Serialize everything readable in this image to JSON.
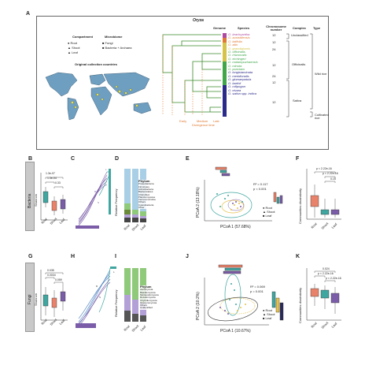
{
  "panel_A": {
    "letter": "A",
    "genus": "Oryza",
    "compartment_title": "Compartment",
    "compartments": [
      "Root",
      "Shoot",
      "Leaf"
    ],
    "microbiome_title": "Microbiome",
    "microbiomes": [
      "Fungi",
      "Bacteria + Archaea"
    ],
    "map_title": "Original collection countries",
    "headers": {
      "genome": "Genome",
      "species": "Species",
      "chromosome": "Chromosome number",
      "complex": "Complex",
      "type": "Type"
    },
    "species": [
      "O. brachyantha",
      "O. australiensis",
      "O. latifolia",
      "O. alta",
      "O. grandiglumis",
      "O. officinalis",
      "O. rhizomatis",
      "O. eichingeri",
      "O. malampuzhaensis",
      "O. minuta",
      "O. punctata",
      "O. longistaminata",
      "O. meridionalis",
      "O. glumaepatula",
      "O. barthii",
      "O. rufipogon",
      "O. nivara",
      "O. sativa spp. indica"
    ],
    "complexes": [
      "Unclassified",
      "Officinalis",
      "Sativa"
    ],
    "types": [
      "Wild rice",
      "Cultivated rice"
    ],
    "chromosome_numbers": [
      "12",
      "12",
      "24",
      "12",
      "24",
      "12",
      "12"
    ],
    "divergence_title": "Divergence time",
    "divergence_scale": [
      "Early",
      "Medium",
      "Late"
    ]
  },
  "row_labels": {
    "bacteria": "Bacteria",
    "fungi": "Fungi"
  },
  "panel_letters": {
    "B": "B",
    "C": "C",
    "D": "D",
    "E": "E",
    "F": "F",
    "G": "G",
    "H": "H",
    "I": "I",
    "J": "J",
    "K": "K"
  },
  "axes": {
    "shannon": "Shannon",
    "relative_frequency": "Relative Frequency",
    "pcoa1_bac": "PCoA 1 (57.68%)",
    "pcoa2_bac": "PCoA 2 (13.18%)",
    "pcoa1_fun": "PCoA 1 (10.67%)",
    "pcoa2_fun": "PCoA 2 (10.2%)",
    "dissimilarity": "Communities dissimilarity",
    "groups": [
      "Root",
      "Shoot",
      "Leaf"
    ]
  },
  "stats": {
    "E": {
      "r2": "R² = 0.117",
      "p": "p < 0.001"
    },
    "J": {
      "r2": "R² = 0.069",
      "p": "p = 0.001"
    },
    "B_sig": [
      "1.3e-07",
      "1.3e-04",
      "0.33"
    ],
    "F_sig": [
      "p < 2.22e-16",
      "p < 2.22e-16",
      "0.15"
    ],
    "G_sig": [
      "0.035",
      "0.0034",
      "0.059"
    ],
    "K_sig": [
      "0.024",
      "p < 2.22e-16",
      "p < 2.22e-16"
    ]
  },
  "phylum_title": "Phylum",
  "phylum_bacteria": [
    "Proteobacteria",
    "Firmicutes",
    "Actinobacteria",
    "Bacteroidetes",
    "Chloroflexi",
    "Planctomycetes",
    "Verrucomicrobia",
    "Others",
    "Cyanobacteria",
    "Other"
  ],
  "phylum_fungi": [
    "Ascomycota",
    "Basidiomycota",
    "Mortierellomycota",
    "Rozellomycota",
    "Chytridiomycota",
    "Glomeromycota",
    "Others",
    "Unidentified"
  ],
  "colors": {
    "root": "#e8826a",
    "shoot": "#3fa6a0",
    "leaf": "#7a5ca8",
    "ocean": "#ffffff",
    "land": "#6e9ec0",
    "accent": "#e07a33"
  }
}
